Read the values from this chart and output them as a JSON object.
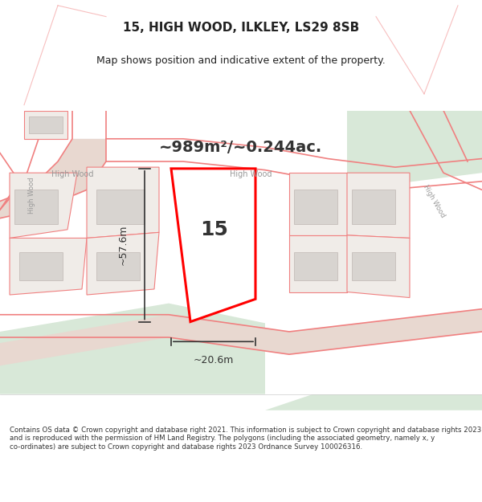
{
  "title": "15, HIGH WOOD, ILKLEY, LS29 8SB",
  "subtitle": "Map shows position and indicative extent of the property.",
  "area_text": "~989m²/~0.244ac.",
  "dim_vertical": "~57.6m",
  "dim_horizontal": "~20.6m",
  "property_number": "15",
  "footer": "Contains OS data © Crown copyright and database right 2021. This information is subject to Crown copyright and database rights 2023 and is reproduced with the permission of HM Land Registry. The polygons (including the associated geometry, namely x, y co-ordinates) are subject to Crown copyright and database rights 2023 Ordnance Survey 100026316.",
  "bg_color": "#f5f5f0",
  "map_bg": "#f0ece8",
  "green_area": "#d8e8d8",
  "road_color": "#e8d0c8",
  "property_outline": "#ff0000",
  "other_outline": "#f08080",
  "building_fill": "#d8d4d0",
  "building_stroke": "#c0b8b4",
  "dim_line_color": "#333333",
  "text_color": "#222222",
  "road_label_color": "#999999"
}
